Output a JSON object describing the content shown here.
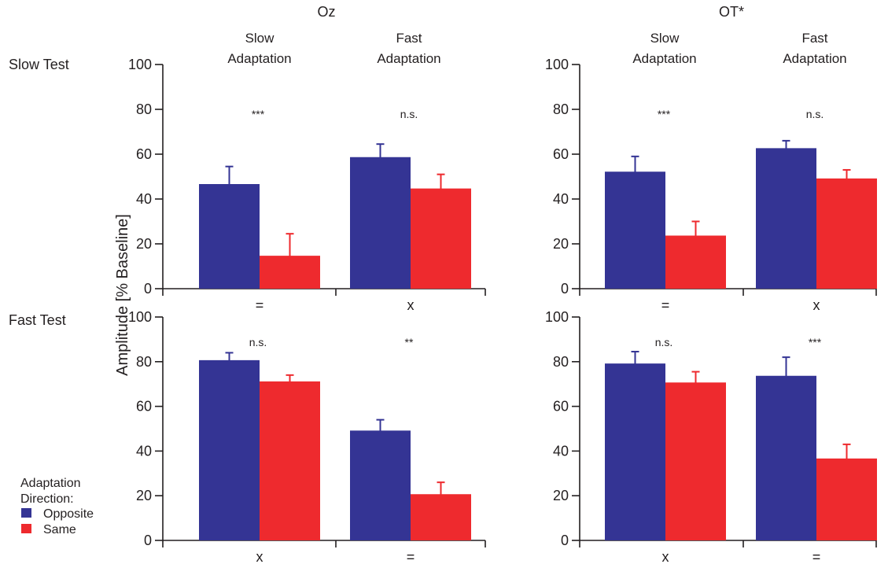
{
  "colors": {
    "opposite": "#343494",
    "same": "#ee2a2e",
    "axis": "#231f20"
  },
  "chart_data": {
    "type": "bar",
    "ylabel": "Amplitude [% Baseline]",
    "ylim": [
      0,
      100
    ],
    "yticks": [
      0,
      20,
      40,
      60,
      80,
      100
    ],
    "columns": [
      "Oz",
      "OT*"
    ],
    "rows": [
      "Slow Test",
      "Fast Test"
    ],
    "conditions": [
      [
        "Slow",
        "Adaptation"
      ],
      [
        "Fast",
        "Adaptation"
      ]
    ],
    "legend": {
      "title": [
        "Adaptation",
        "Direction:"
      ],
      "position": "bottom-left"
    },
    "series_names": [
      "Opposite",
      "Same"
    ],
    "panels": [
      {
        "row": 0,
        "col": 0,
        "groups": [
          {
            "x_label": "=",
            "sig": "***",
            "opposite": 46.5,
            "opposite_err": 8,
            "same": 14.5,
            "same_err": 10
          },
          {
            "x_label": "x",
            "sig": "n.s.",
            "opposite": 58.5,
            "opposite_err": 6,
            "same": 44.5,
            "same_err": 6.5
          }
        ]
      },
      {
        "row": 0,
        "col": 1,
        "groups": [
          {
            "x_label": "=",
            "sig": "***",
            "opposite": 52,
            "opposite_err": 7,
            "same": 23.5,
            "same_err": 6.5
          },
          {
            "x_label": "x",
            "sig": "n.s.",
            "opposite": 62.5,
            "opposite_err": 3.5,
            "same": 49,
            "same_err": 4
          }
        ]
      },
      {
        "row": 1,
        "col": 0,
        "groups": [
          {
            "x_label": "x",
            "sig": "n.s.",
            "opposite": 80.5,
            "opposite_err": 3.5,
            "same": 71,
            "same_err": 3
          },
          {
            "x_label": "=",
            "sig": "**",
            "opposite": 49,
            "opposite_err": 5,
            "same": 20.5,
            "same_err": 5.5
          }
        ]
      },
      {
        "row": 1,
        "col": 1,
        "groups": [
          {
            "x_label": "x",
            "sig": "n.s.",
            "opposite": 79,
            "opposite_err": 5.5,
            "same": 70.5,
            "same_err": 5
          },
          {
            "x_label": "=",
            "sig": "***",
            "opposite": 73.5,
            "opposite_err": 8.5,
            "same": 36.5,
            "same_err": 6.5
          }
        ]
      }
    ]
  }
}
